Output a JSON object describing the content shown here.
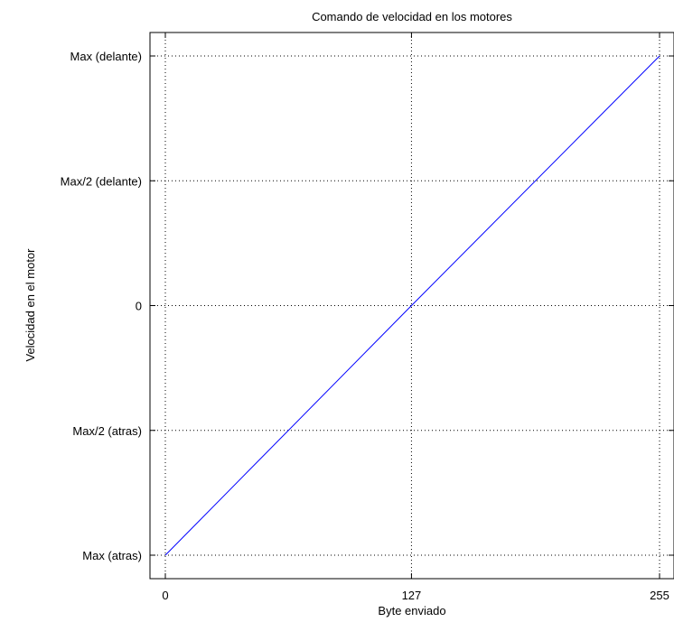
{
  "chart_data": {
    "type": "line",
    "title": "Comando de velocidad en los motores",
    "xlabel": "Byte enviado",
    "ylabel": "Velocidad en el motor",
    "xlim": [
      0,
      255
    ],
    "ylim": [
      -1,
      1
    ],
    "x_ticks": [
      {
        "value": 0,
        "label": "0"
      },
      {
        "value": 127,
        "label": "127"
      },
      {
        "value": 255,
        "label": "255"
      }
    ],
    "y_ticks": [
      {
        "value": -1,
        "label": "Max (atras)"
      },
      {
        "value": -0.5,
        "label": "Max/2 (atras)"
      },
      {
        "value": 0,
        "label": "0"
      },
      {
        "value": 0.5,
        "label": "Max/2 (delante)"
      },
      {
        "value": 1,
        "label": "Max (delante)"
      }
    ],
    "grid": true,
    "series": [
      {
        "x": [
          0,
          127,
          255
        ],
        "y": [
          -1,
          0,
          1
        ],
        "color": "#0000ff"
      }
    ]
  }
}
